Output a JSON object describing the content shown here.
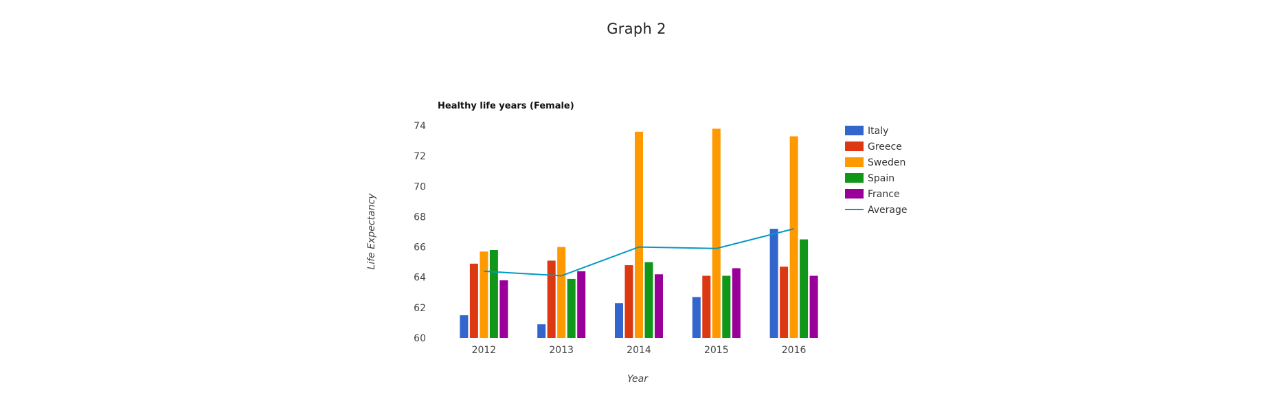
{
  "page": {
    "title": "Graph 2"
  },
  "chart_data": {
    "type": "bar",
    "title": "Healthy life years (Female)",
    "xlabel": "Year",
    "ylabel": "Life Expectancy",
    "categories": [
      "2012",
      "2013",
      "2014",
      "2015",
      "2016"
    ],
    "ylim": [
      60,
      74
    ],
    "yticks": [
      60,
      62,
      64,
      66,
      68,
      70,
      72,
      74
    ],
    "grid": false,
    "legend_position": "right",
    "series": [
      {
        "name": "Italy",
        "color": "#3366cc",
        "values": [
          61.5,
          60.9,
          62.3,
          62.7,
          67.2
        ]
      },
      {
        "name": "Greece",
        "color": "#dc3912",
        "values": [
          64.9,
          65.1,
          64.8,
          64.1,
          64.7
        ]
      },
      {
        "name": "Sweden",
        "color": "#ff9900",
        "values": [
          65.7,
          66.0,
          73.6,
          73.8,
          73.3
        ]
      },
      {
        "name": "Spain",
        "color": "#109618",
        "values": [
          65.8,
          63.9,
          65.0,
          64.1,
          66.5
        ]
      },
      {
        "name": "France",
        "color": "#990099",
        "values": [
          63.8,
          64.4,
          64.2,
          64.6,
          64.1
        ]
      }
    ],
    "line_series": {
      "name": "Average",
      "color": "#0099c6",
      "values": [
        64.4,
        64.1,
        66.0,
        65.9,
        67.2
      ]
    }
  }
}
